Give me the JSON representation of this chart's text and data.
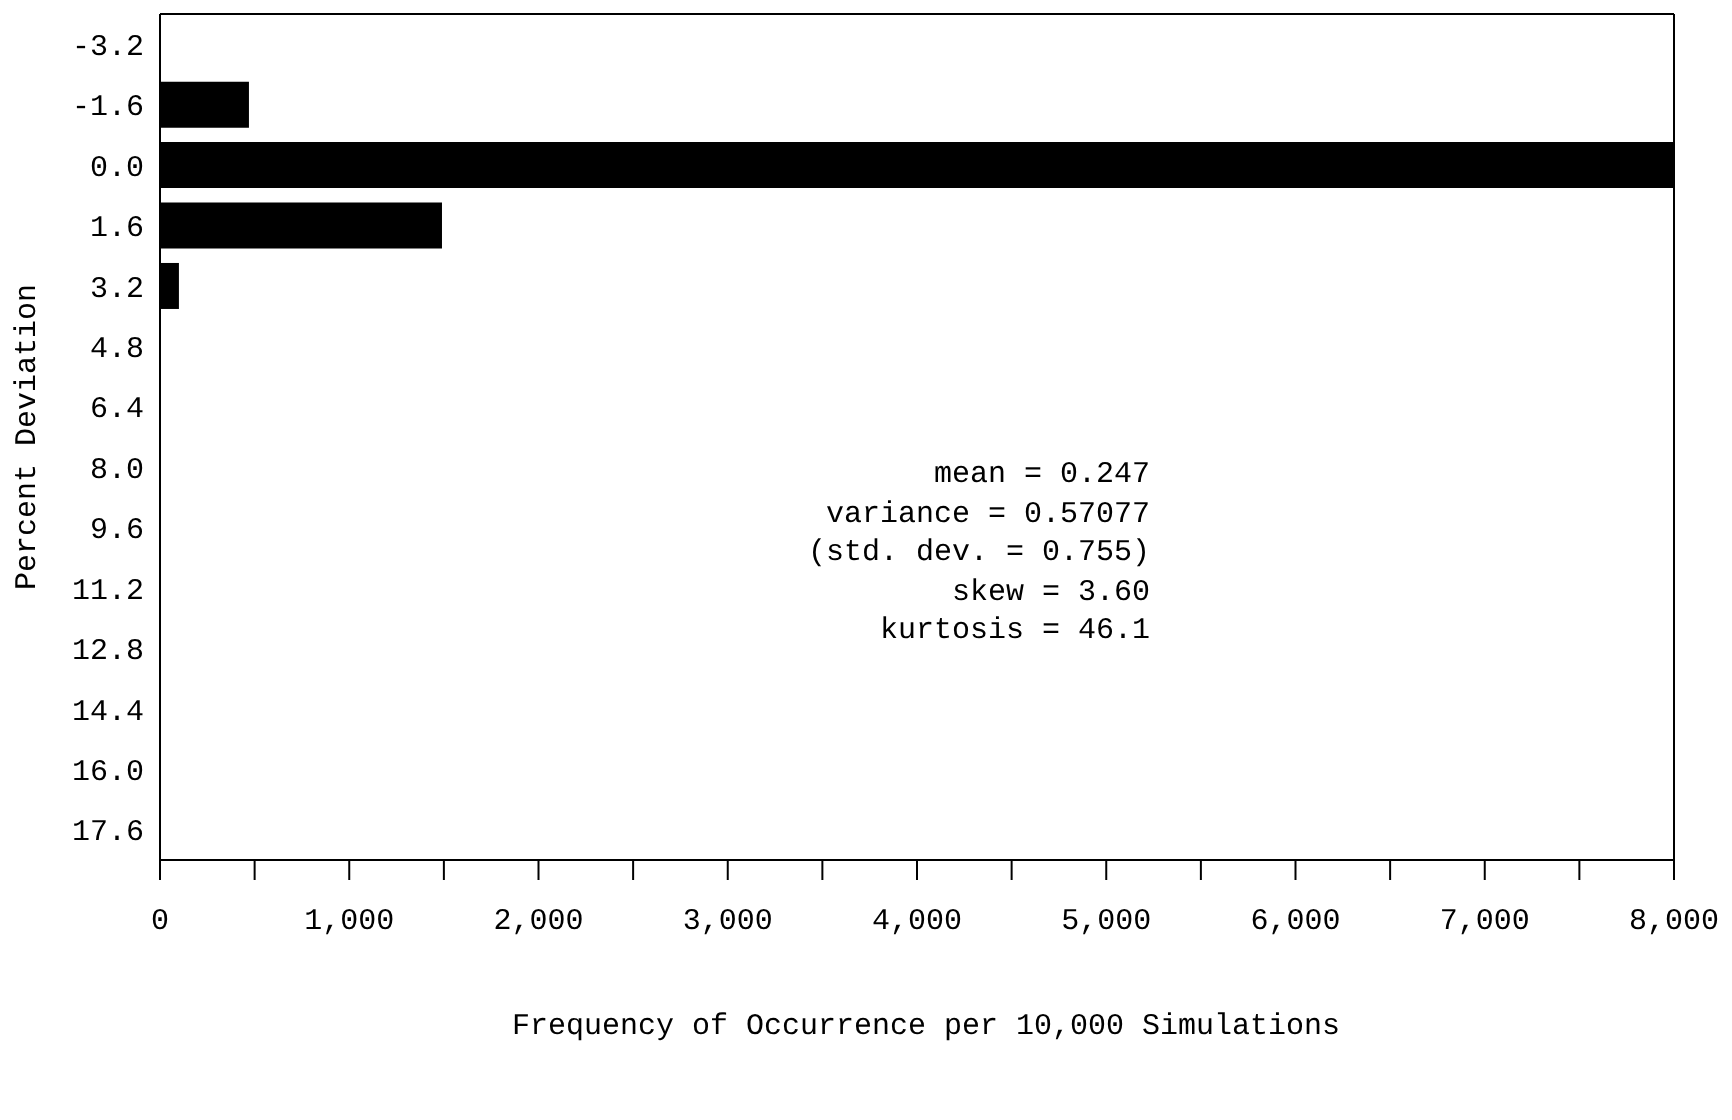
{
  "chart_data": {
    "type": "bar",
    "orientation": "horizontal",
    "xlabel": "Frequency of Occurrence per 10,000 Simulations",
    "ylabel": "Percent Deviation",
    "categories": [
      "-3.2",
      "-1.6",
      "0.0",
      "1.6",
      "3.2",
      "4.8",
      "6.4",
      "8.0",
      "9.6",
      "11.2",
      "12.8",
      "14.4",
      "16.0",
      "17.6"
    ],
    "values": [
      0,
      470,
      8000,
      1490,
      100,
      0,
      0,
      0,
      0,
      0,
      0,
      0,
      0,
      0
    ],
    "color": "#000000",
    "xlim": [
      0,
      8000
    ],
    "xticks": [
      0,
      {
        "value": 500,
        "label": null
      },
      {
        "value": 1000,
        "label": "1,000"
      },
      {
        "value": 1500,
        "label": null
      },
      {
        "value": 2000,
        "label": "2,000"
      },
      {
        "value": 2500,
        "label": null
      },
      {
        "value": 3000,
        "label": "3,000"
      },
      {
        "value": 3500,
        "label": null
      },
      {
        "value": 4000,
        "label": "4,000"
      },
      {
        "value": 4500,
        "label": null
      },
      {
        "value": 5000,
        "label": "5,000"
      },
      {
        "value": 5500,
        "label": null
      },
      {
        "value": 6000,
        "label": "6,000"
      },
      {
        "value": 6500,
        "label": null
      },
      {
        "value": 7000,
        "label": "7,000"
      },
      {
        "value": 7500,
        "label": null
      },
      {
        "value": 8000,
        "label": "8,000"
      }
    ],
    "annotations": [
      "mean = 0.247",
      "variance = 0.57077",
      "(std. dev. = 0.755)",
      "skew = 3.60",
      "kurtosis = 46.1"
    ],
    "grid": false,
    "legend": false
  }
}
